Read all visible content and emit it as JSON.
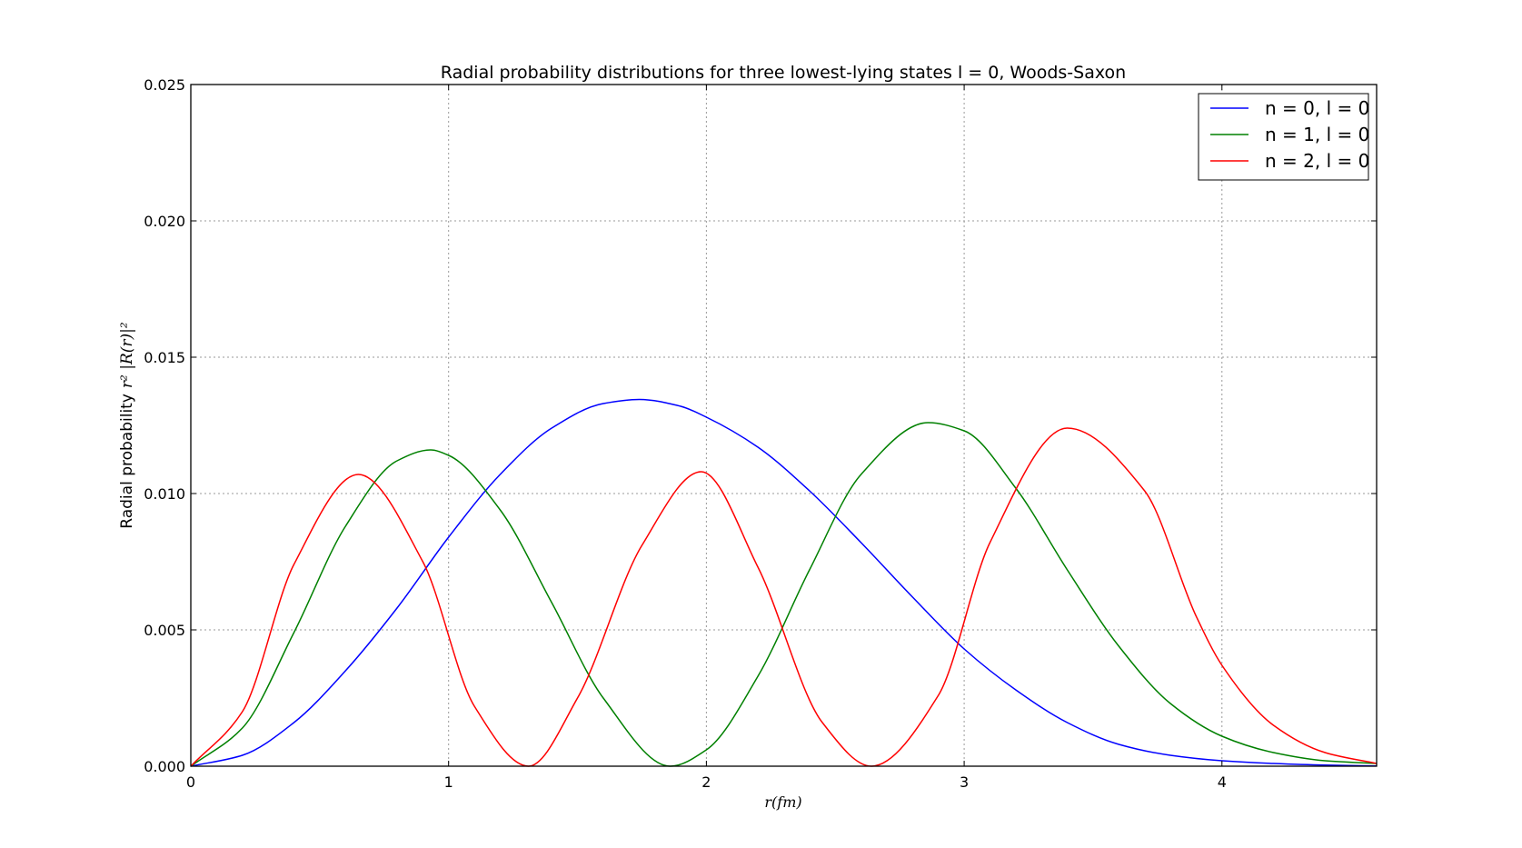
{
  "chart_data": {
    "type": "line",
    "title": "Radial probability distributions for three lowest-lying states l = 0, Woods-Saxon",
    "ylabel": "Radial probability",
    "ylabel_math": "r² |R(r)|²",
    "xlabel": "r(fm)",
    "xlim": [
      0,
      4.6
    ],
    "ylim": [
      0,
      0.025
    ],
    "x_ticks": [
      0,
      1,
      2,
      3,
      4
    ],
    "x_tick_labels": [
      "0",
      "1",
      "2",
      "3",
      "4"
    ],
    "y_ticks": [
      0,
      0.005,
      0.01,
      0.015,
      0.02,
      0.025
    ],
    "y_tick_labels": [
      "0.000",
      "0.005",
      "0.010",
      "0.015",
      "0.020",
      "0.025"
    ],
    "grid": true,
    "legend_position": "top-right",
    "series": [
      {
        "name": "n = 0, l = 0",
        "color": "#0000ff",
        "x": [
          0,
          0.2,
          0.4,
          0.6,
          0.8,
          1.0,
          1.2,
          1.4,
          1.6,
          1.74,
          1.9,
          2.0,
          2.2,
          2.4,
          2.6,
          2.8,
          3.0,
          3.2,
          3.4,
          3.6,
          3.8,
          4.0,
          4.2,
          4.4,
          4.6
        ],
        "y": [
          0,
          0.0004,
          0.0016,
          0.0035,
          0.0058,
          0.0084,
          0.0107,
          0.0124,
          0.0133,
          0.01345,
          0.0132,
          0.0128,
          0.0117,
          0.0101,
          0.0082,
          0.0062,
          0.0043,
          0.0028,
          0.0016,
          0.0008,
          0.0004,
          0.0002,
          0.0001,
          4e-05,
          1e-05
        ]
      },
      {
        "name": "n = 1, l = 0",
        "color": "#008000",
        "x": [
          0,
          0.2,
          0.4,
          0.6,
          0.8,
          0.93,
          1.0,
          1.2,
          1.4,
          1.6,
          1.86,
          2.0,
          2.2,
          2.4,
          2.6,
          2.86,
          3.0,
          3.2,
          3.4,
          3.6,
          3.8,
          4.0,
          4.2,
          4.4,
          4.6
        ],
        "y": [
          0,
          0.0014,
          0.0049,
          0.0088,
          0.0112,
          0.0116,
          0.0114,
          0.0094,
          0.006,
          0.0025,
          0,
          0.0006,
          0.0033,
          0.0072,
          0.0107,
          0.0126,
          0.0123,
          0.0102,
          0.0072,
          0.0044,
          0.0023,
          0.0011,
          0.0005,
          0.0002,
          0.0001
        ]
      },
      {
        "name": "n = 2, l = 0",
        "color": "#ff0000",
        "x": [
          0,
          0.2,
          0.4,
          0.65,
          0.9,
          1.1,
          1.31,
          1.5,
          1.75,
          1.98,
          2.2,
          2.45,
          2.64,
          2.9,
          3.1,
          3.4,
          3.7,
          3.9,
          4.0,
          4.2,
          4.4,
          4.6
        ],
        "y": [
          0,
          0.002,
          0.0074,
          0.0107,
          0.0075,
          0.0022,
          0,
          0.0025,
          0.0081,
          0.0108,
          0.0073,
          0.0016,
          0,
          0.0026,
          0.0082,
          0.0124,
          0.0101,
          0.0055,
          0.0037,
          0.0015,
          0.0005,
          0.0001
        ]
      }
    ]
  }
}
